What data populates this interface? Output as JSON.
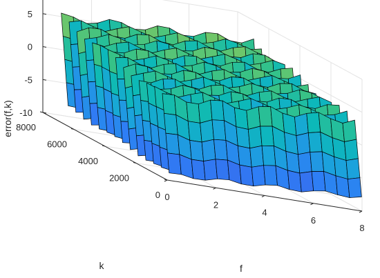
{
  "chart_data": {
    "type": "surface",
    "title": "",
    "xlabel": "f",
    "ylabel": "k",
    "zlabel": "error(f,k)",
    "xlim": [
      0,
      8
    ],
    "ylim": [
      0,
      8000
    ],
    "zlim": [
      -10,
      10
    ],
    "xticks": [
      "0",
      "2",
      "4",
      "6",
      "8"
    ],
    "yticks": [
      "0",
      "2000",
      "4000",
      "6000",
      "8000"
    ],
    "zticks": [
      "-10",
      "-5",
      "0",
      "5",
      "10"
    ],
    "grid": true,
    "colormap": "parula",
    "colormap_stops": [
      "#3e26a8",
      "#4653e1",
      "#2e7ef5",
      "#1aa4db",
      "#0cb9b8",
      "#36c287",
      "#8ec85a",
      "#d7bb32",
      "#f9d71c"
    ],
    "surface": {
      "description_k_values": [
        250,
        750,
        1250,
        1750,
        2250,
        2750,
        3250,
        3750,
        4250,
        4750,
        5250,
        5750,
        6250,
        6750
      ],
      "f_range": [
        0.1,
        8
      ],
      "error_range_at_k_start": [
        -9.2,
        2.0
      ],
      "error_range_at_k_end": [
        -7.0,
        6.6
      ],
      "error_center_slope_per_f": 0.3
    }
  }
}
